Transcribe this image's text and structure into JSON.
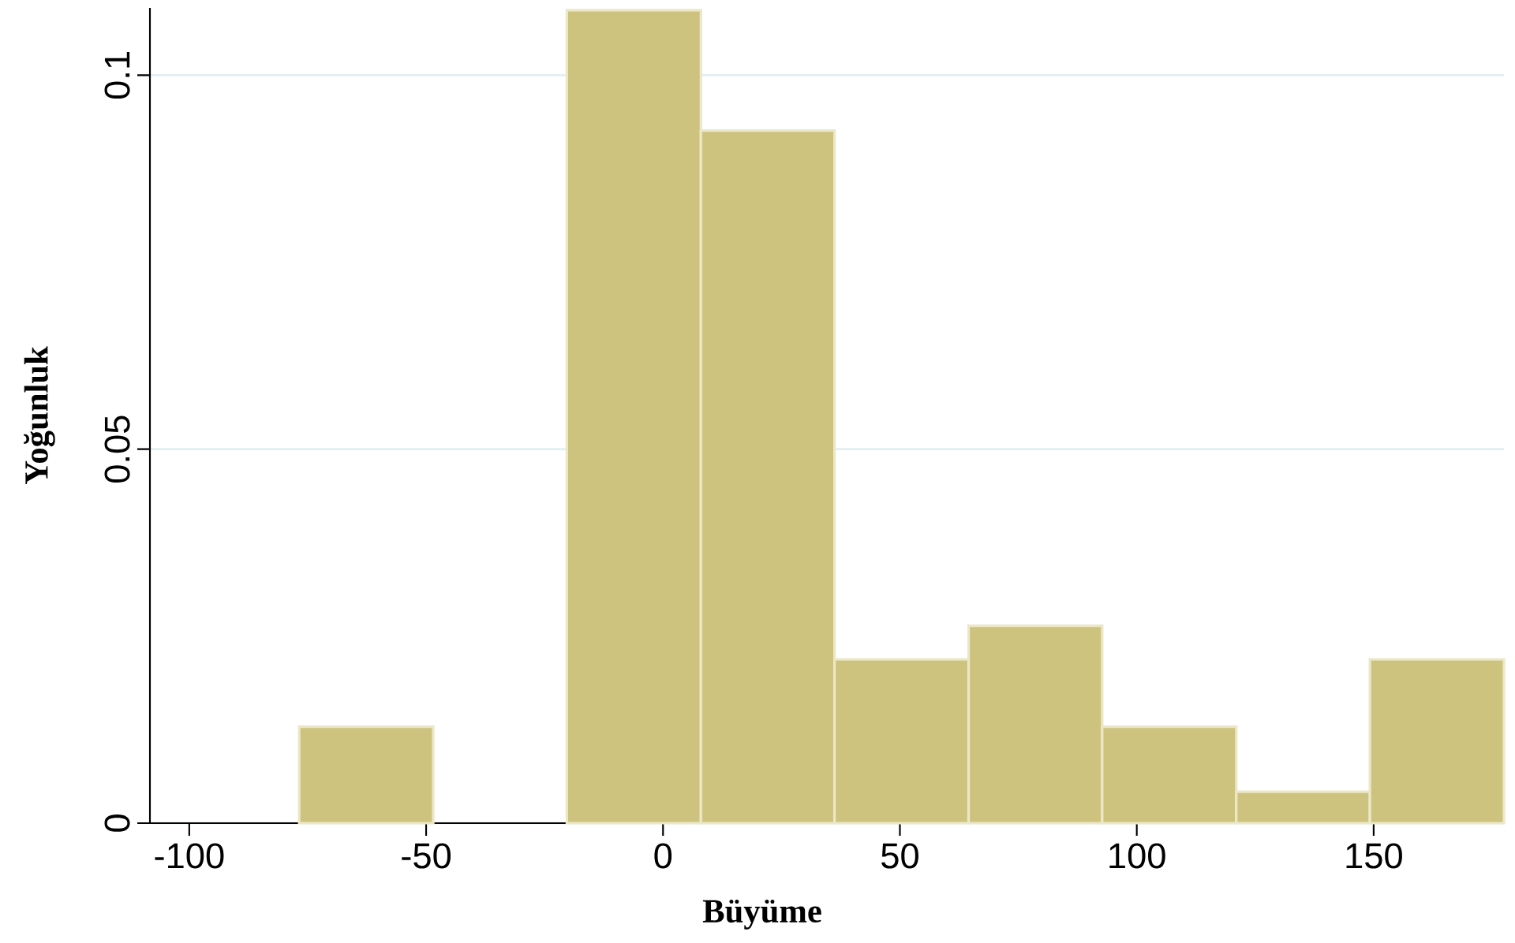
{
  "chart_data": {
    "type": "histogram",
    "xlabel": "Büyüme",
    "ylabel": "Yoğunluk",
    "bins": [
      -76.8,
      -48.5,
      -20.3,
      8.0,
      36.2,
      64.5,
      92.7,
      121.0,
      149.2,
      177.5
    ],
    "values": [
      0.0129,
      0,
      0.1087,
      0.0926,
      0.0219,
      0.0264,
      0.0129,
      0.0042,
      0.0219
    ],
    "color": "#cdc37f",
    "xlim": [
      -108.3,
      177.5
    ],
    "ylim": [
      0,
      0.109
    ],
    "xticks": [
      -100,
      -50,
      0,
      50,
      100,
      150
    ],
    "yticks": [
      0,
      0.05,
      0.1
    ],
    "grid": "y"
  }
}
